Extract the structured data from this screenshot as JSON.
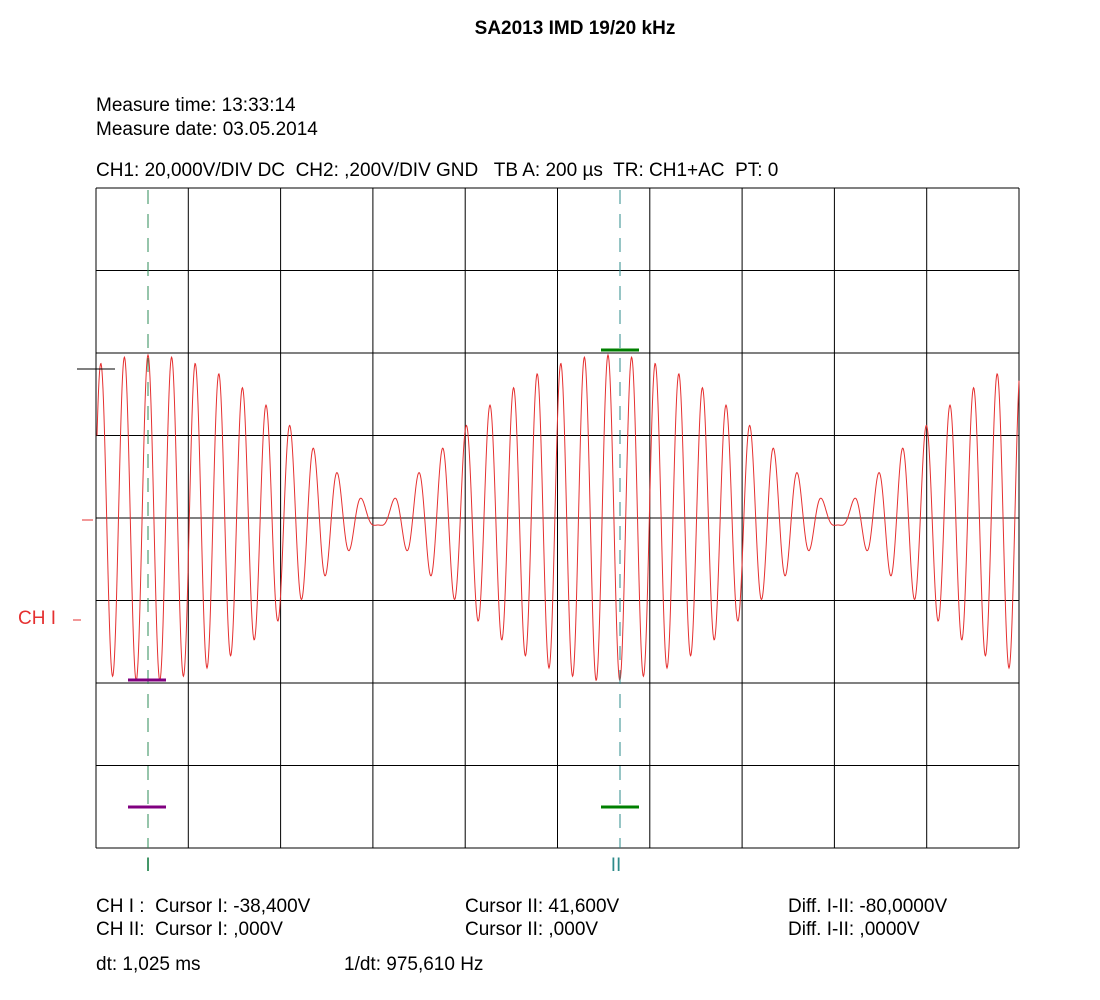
{
  "title": "SA2013 IMD 19/20 kHz",
  "measure": [
    "Measure time: 13:33:14",
    "Measure date: 03.05.2014"
  ],
  "settings": "CH1: 20,000V/DIV DC  CH2: ,200V/DIV GND   TB A: 200 µs  TR: CH1+AC  PT: 0",
  "channel_label": "CH I",
  "cursor_labels": [
    "I",
    "II"
  ],
  "readouts": [
    [
      "CH I :  Cursor I: -38,400V",
      "Cursor II: 41,600V",
      "Diff. I-II: -80,0000V"
    ],
    [
      "CH II:  Cursor I: ,000V",
      "Cursor II: ,000V",
      "Diff. I-II: ,0000V"
    ]
  ],
  "timing": [
    "dt: 1,025 ms",
    "1/dt: 975,610 Hz"
  ]
}
